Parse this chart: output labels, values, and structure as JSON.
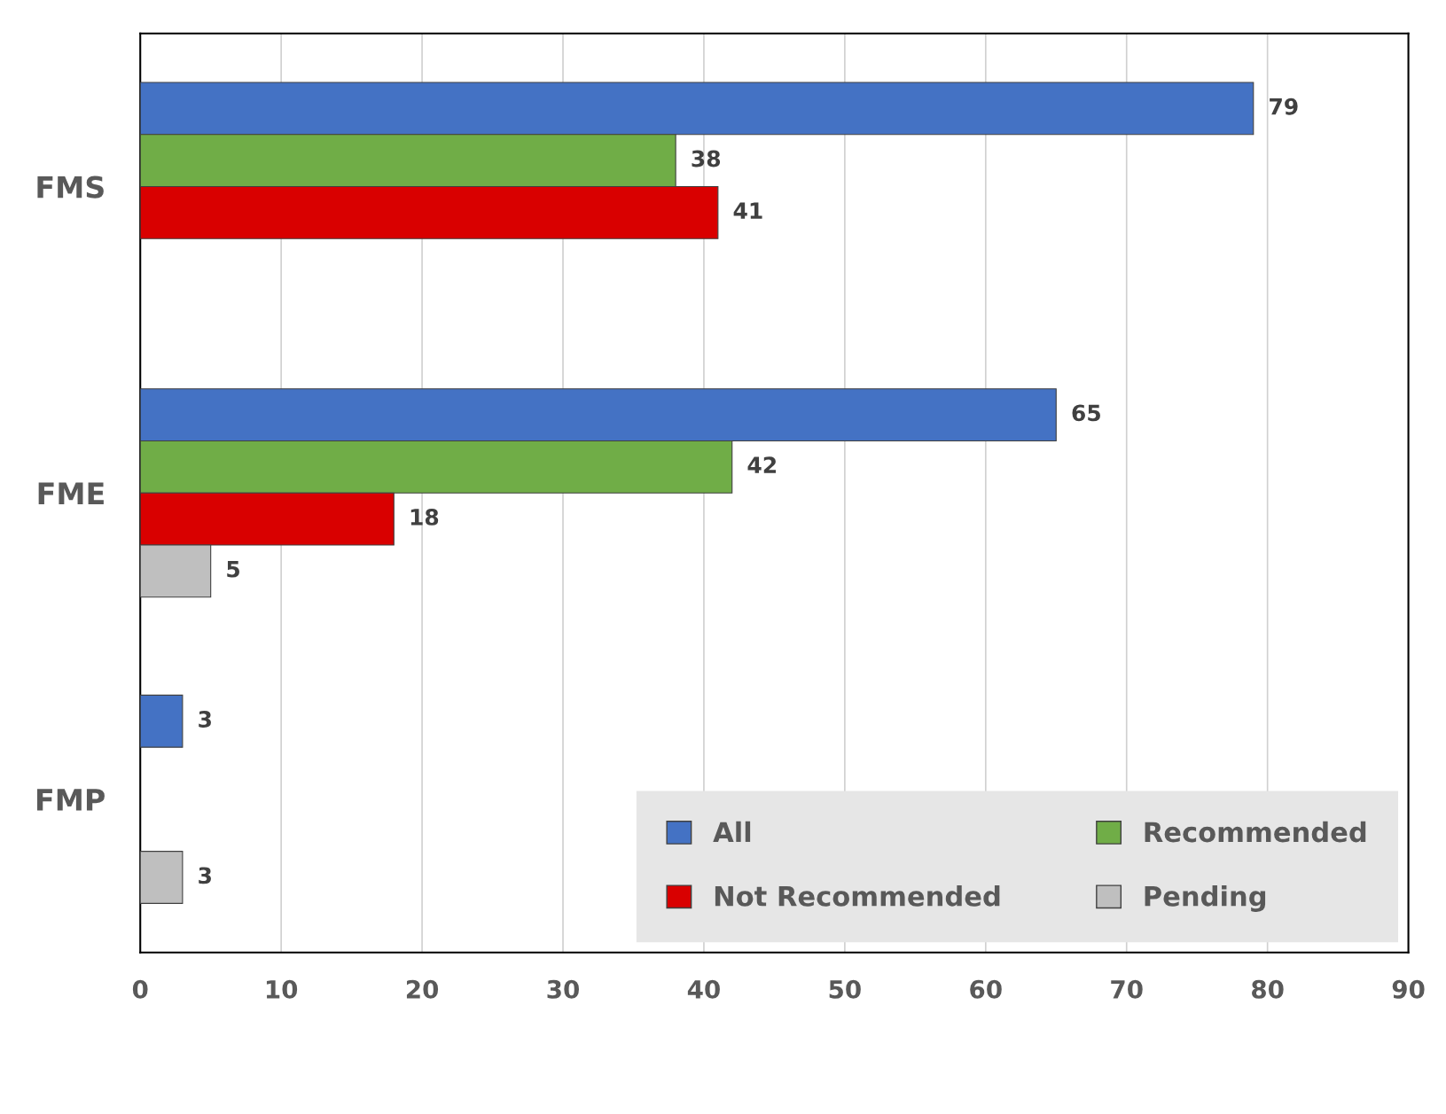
{
  "chart_data": {
    "type": "bar",
    "orientation": "horizontal",
    "categories": [
      "FMS",
      "FME",
      "FMP"
    ],
    "series": [
      {
        "name": "All",
        "color": "#4472c4",
        "values": [
          79,
          65,
          3
        ]
      },
      {
        "name": "Recommended",
        "color": "#70ad47",
        "values": [
          38,
          42,
          null
        ]
      },
      {
        "name": "Not Recommended",
        "color": "#d90000",
        "values": [
          41,
          18,
          null
        ]
      },
      {
        "name": "Pending",
        "color": "#bfbfbf",
        "values": [
          null,
          5,
          3
        ]
      }
    ],
    "xlim": [
      0,
      90
    ],
    "xticks": [
      0,
      10,
      20,
      30,
      40,
      50,
      60,
      70,
      80,
      90
    ],
    "grid": "x",
    "legend": "bottom right",
    "data_labels": true
  }
}
